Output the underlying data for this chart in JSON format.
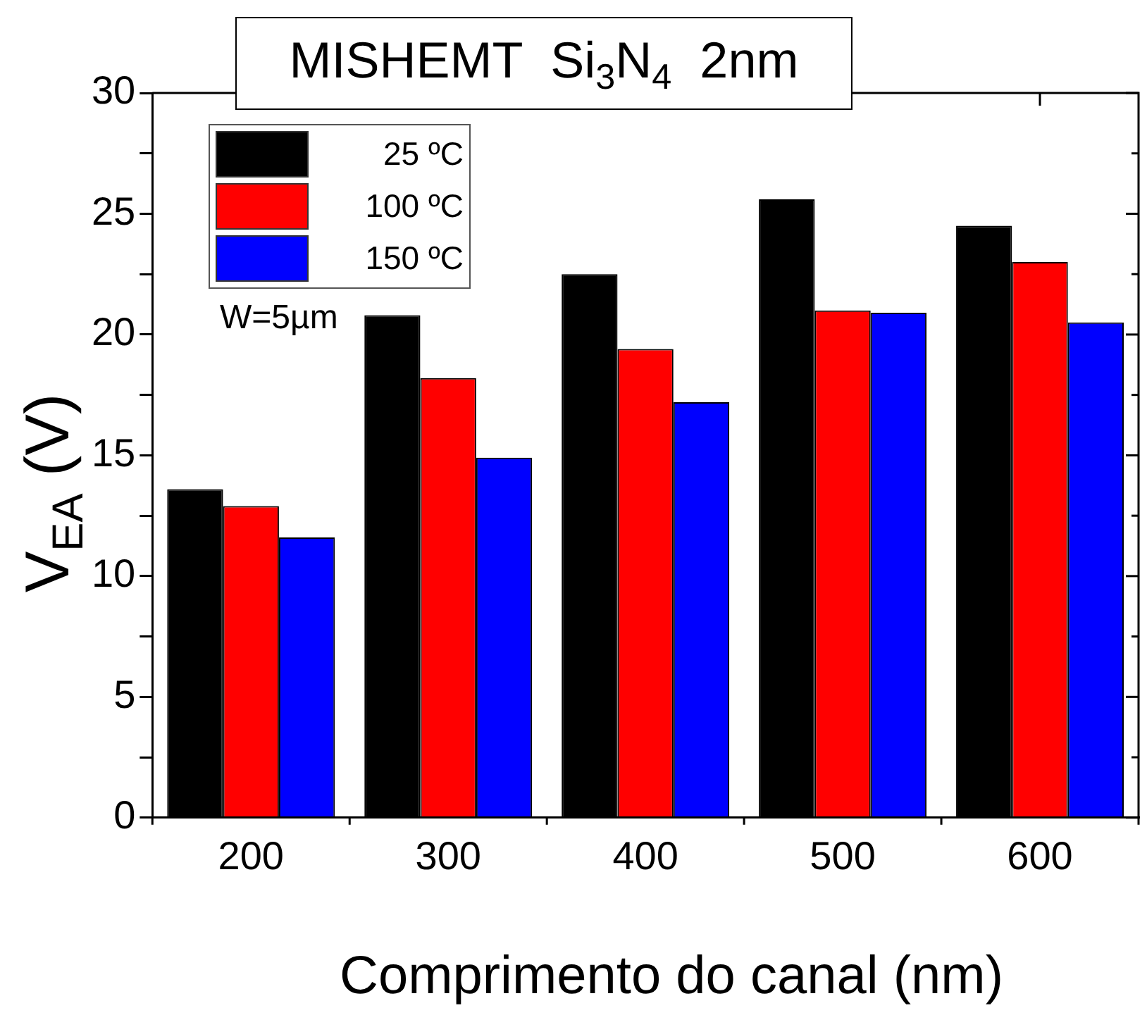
{
  "chart_data": {
    "type": "bar",
    "title": "MISHEMT  Si$_{3}$N$_{4}$  2nm",
    "xlabel": "Comprimento do canal (nm)",
    "ylabel": "V$_{EA}$ (V)",
    "categories": [
      "200",
      "300",
      "400",
      "500",
      "600"
    ],
    "series": [
      {
        "name": "25 ºC",
        "color": "#000000",
        "values": [
          13.6,
          20.8,
          22.5,
          25.6,
          24.5
        ]
      },
      {
        "name": "100 ºC",
        "color": "#ff0000",
        "values": [
          12.9,
          18.2,
          19.4,
          21.0,
          23.0
        ]
      },
      {
        "name": "150 ºC",
        "color": "#0000ff",
        "values": [
          11.6,
          14.9,
          17.2,
          20.9,
          20.5
        ]
      }
    ],
    "ylim": [
      0,
      30
    ],
    "yticks": [
      0,
      {
        "value": 2.5,
        "label": null
      },
      5,
      {
        "value": 7.5,
        "label": null
      },
      10,
      {
        "value": 12.5,
        "label": null
      },
      15,
      {
        "value": 17.5,
        "label": null
      },
      20,
      {
        "value": 22.5,
        "label": null
      },
      25,
      {
        "value": 27.5,
        "label": null
      },
      30
    ],
    "annotations": [
      "W=5µm"
    ],
    "grid": false,
    "legend": "top left"
  }
}
